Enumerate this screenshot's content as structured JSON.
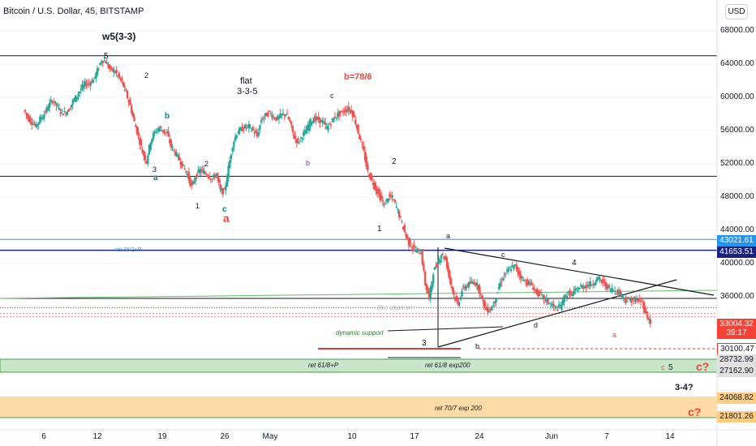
{
  "header": {
    "title": "Bitcoin / U.S. Dollar, 45, BITSTAMP",
    "currency": "USD"
  },
  "colors": {
    "up": "#26a69a",
    "down": "#ef5350",
    "blue_line": "#2196f3",
    "green_line": "#4caf50",
    "orange_zone": "#ffcc80",
    "green_zone": "#a5d6a7",
    "red_tag": "#f44336",
    "dark_tag": "#131722"
  },
  "chart_data": {
    "type": "candlestick",
    "symbol": "BTCUSD",
    "interval": "45",
    "exchange": "BITSTAMP",
    "ylim": [
      20000,
      72000
    ],
    "y_ticks": [
      "68000.00",
      "64000.00",
      "60000.00",
      "56000.00",
      "52000.00",
      "48000.00",
      "44000.00",
      "40000.00",
      "36000.00"
    ],
    "x_ticks": [
      "6",
      "12",
      "19",
      "26",
      "May",
      "10",
      "17",
      "24",
      "Jun",
      "7",
      "14"
    ],
    "price_path": [
      [
        0.0,
        58500
      ],
      [
        0.5,
        57600
      ],
      [
        1.0,
        57000
      ],
      [
        1.5,
        56500
      ],
      [
        2.0,
        57400
      ],
      [
        2.5,
        58000
      ],
      [
        3.0,
        58900
      ],
      [
        3.5,
        59700
      ],
      [
        4.0,
        59000
      ],
      [
        4.5,
        58300
      ],
      [
        5.0,
        58100
      ],
      [
        5.5,
        58500
      ],
      [
        6.0,
        59500
      ],
      [
        6.5,
        60200
      ],
      [
        7.0,
        61000
      ],
      [
        7.5,
        61600
      ],
      [
        8.0,
        61700
      ],
      [
        8.5,
        62100
      ],
      [
        9.0,
        63200
      ],
      [
        9.5,
        64500
      ],
      [
        10.0,
        64300
      ],
      [
        10.5,
        63400
      ],
      [
        11.0,
        63200
      ],
      [
        11.5,
        62600
      ],
      [
        12.0,
        61800
      ],
      [
        12.5,
        60500
      ],
      [
        13.0,
        59000
      ],
      [
        13.5,
        57000
      ],
      [
        14.0,
        55300
      ],
      [
        14.5,
        53400
      ],
      [
        15.0,
        52300
      ],
      [
        15.5,
        54800
      ],
      [
        16.0,
        55800
      ],
      [
        16.5,
        56300
      ],
      [
        17.0,
        56000
      ],
      [
        17.5,
        55600
      ],
      [
        18.0,
        54100
      ],
      [
        18.5,
        53300
      ],
      [
        19.0,
        52500
      ],
      [
        19.5,
        51600
      ],
      [
        20.0,
        50700
      ],
      [
        20.5,
        49200
      ],
      [
        21.0,
        50500
      ],
      [
        21.5,
        51200
      ],
      [
        22.0,
        51000
      ],
      [
        22.5,
        50700
      ],
      [
        23.0,
        50100
      ],
      [
        23.5,
        50800
      ],
      [
        24.0,
        48800
      ],
      [
        24.5,
        48600
      ],
      [
        25.0,
        51500
      ],
      [
        25.5,
        54300
      ],
      [
        26.0,
        55700
      ],
      [
        26.5,
        56100
      ],
      [
        27.0,
        56400
      ],
      [
        27.5,
        56500
      ],
      [
        28.0,
        56000
      ],
      [
        28.5,
        55300
      ],
      [
        29.0,
        57300
      ],
      [
        29.5,
        57800
      ],
      [
        30.0,
        58200
      ],
      [
        30.5,
        57600
      ],
      [
        31.0,
        57400
      ],
      [
        31.5,
        57900
      ],
      [
        32.0,
        58000
      ],
      [
        32.5,
        57000
      ],
      [
        33.0,
        55200
      ],
      [
        33.5,
        54600
      ],
      [
        34.0,
        55400
      ],
      [
        34.5,
        56000
      ],
      [
        35.0,
        57100
      ],
      [
        35.5,
        57400
      ],
      [
        36.0,
        57300
      ],
      [
        36.5,
        57000
      ],
      [
        37.0,
        56300
      ],
      [
        37.5,
        57000
      ],
      [
        38.0,
        57700
      ],
      [
        38.5,
        58000
      ],
      [
        39.0,
        58300
      ],
      [
        39.5,
        58600
      ],
      [
        40.0,
        58400
      ],
      [
        40.5,
        57000
      ],
      [
        41.0,
        55200
      ],
      [
        41.5,
        53400
      ],
      [
        42.0,
        51000
      ],
      [
        42.5,
        50000
      ],
      [
        43.0,
        49000
      ],
      [
        43.5,
        48000
      ],
      [
        44.0,
        47000
      ],
      [
        44.5,
        48000
      ],
      [
        45.0,
        47900
      ],
      [
        45.5,
        46800
      ],
      [
        46.0,
        45300
      ],
      [
        46.5,
        43800
      ],
      [
        47.0,
        42500
      ],
      [
        47.5,
        41900
      ],
      [
        48.0,
        41500
      ],
      [
        48.5,
        41400
      ],
      [
        49.0,
        37600
      ],
      [
        49.5,
        35800
      ],
      [
        50.0,
        39000
      ],
      [
        50.5,
        40000
      ],
      [
        51.0,
        41200
      ],
      [
        51.5,
        40500
      ],
      [
        52.0,
        38200
      ],
      [
        52.5,
        36200
      ],
      [
        53.0,
        35000
      ],
      [
        53.5,
        36800
      ],
      [
        54.0,
        37300
      ],
      [
        54.5,
        37600
      ],
      [
        55.0,
        37800
      ],
      [
        55.5,
        37200
      ],
      [
        56.0,
        35500
      ],
      [
        56.5,
        34400
      ],
      [
        57.0,
        34500
      ],
      [
        57.5,
        35500
      ],
      [
        58.0,
        37200
      ],
      [
        58.5,
        38400
      ],
      [
        59.0,
        39000
      ],
      [
        59.5,
        39500
      ],
      [
        60.0,
        39700
      ],
      [
        60.5,
        38700
      ],
      [
        61.0,
        38000
      ],
      [
        61.5,
        37700
      ],
      [
        62.0,
        37400
      ],
      [
        62.5,
        36600
      ],
      [
        63.0,
        36300
      ],
      [
        63.5,
        35800
      ],
      [
        64.0,
        35400
      ],
      [
        64.5,
        34900
      ],
      [
        65.0,
        34600
      ],
      [
        65.5,
        34800
      ],
      [
        66.0,
        36000
      ],
      [
        66.5,
        36400
      ],
      [
        67.0,
        36300
      ],
      [
        67.5,
        36900
      ],
      [
        68.0,
        37200
      ],
      [
        68.5,
        37300
      ],
      [
        69.0,
        37500
      ],
      [
        69.5,
        37600
      ],
      [
        70.0,
        38200
      ],
      [
        70.5,
        37900
      ],
      [
        71.0,
        37400
      ],
      [
        71.5,
        37000
      ],
      [
        72.0,
        36800
      ],
      [
        72.5,
        36600
      ],
      [
        73.0,
        36200
      ],
      [
        73.5,
        35600
      ],
      [
        74.0,
        35600
      ],
      [
        74.5,
        35700
      ],
      [
        75.0,
        35500
      ],
      [
        75.5,
        35400
      ],
      [
        76.0,
        33800
      ],
      [
        76.5,
        33000
      ]
    ],
    "horizontal_lines": [
      65000,
      50500,
      42900,
      41600,
      35800,
      34700,
      34000,
      33600
    ],
    "price_tags": [
      "43021.61",
      "41653.51",
      "33004.32",
      "39:17",
      "30100.47",
      "28732.99",
      "27162.90",
      "24068.82",
      "21801.26"
    ],
    "annotations": {
      "wave_title": "w5(3-3)",
      "flat_label": "flat",
      "flat_sub": "3-3-5",
      "b_ratio": "b=78/6",
      "ret_382": "ret 38/2+P",
      "fibo_channel": "fibo channel",
      "dynamic_support": "dynamic support",
      "ret_618p": "ret 61/8+P",
      "ret_618_exp": "ret 61/8 exp200",
      "ret_707_exp": "ret 70/7 exp 200",
      "c_question": "c?",
      "wave_34": "3-4?",
      "wave_5": "5",
      "wave_4": "4",
      "wave_3": "3",
      "wave_2": "2",
      "wave_1": "1",
      "label_a": "a",
      "label_b": "b",
      "label_c": "c",
      "label_d": "d"
    }
  }
}
